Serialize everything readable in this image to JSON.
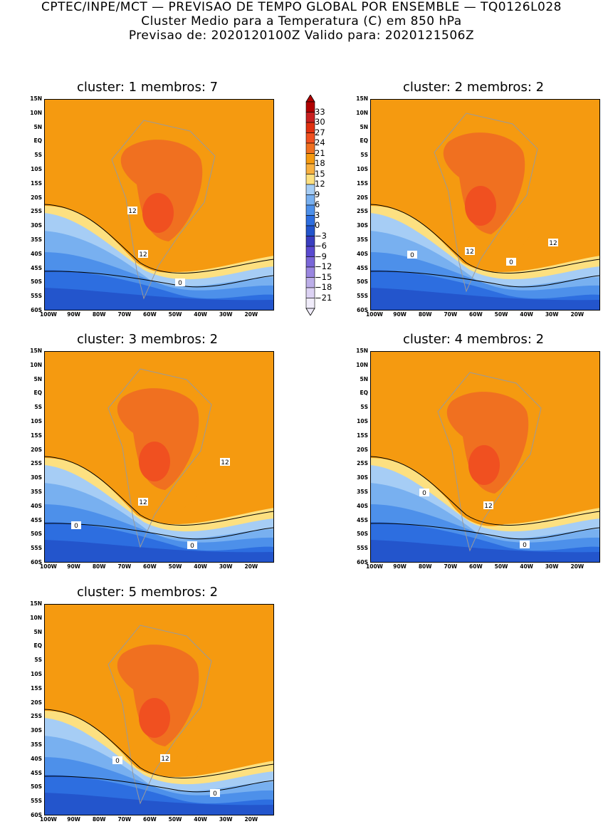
{
  "header": {
    "line1": "CPTEC/INPE/MCT — PREVISAO DE TEMPO GLOBAL POR ENSEMBLE — TQ0126L028",
    "line2": "Cluster Medio para a Temperatura (C) em 850 hPa",
    "line3": "Previsao de: 2020120100Z   Valido para: 2020121506Z"
  },
  "panels": [
    {
      "title": "cluster: 1   membros: 7",
      "contour_labels": [
        "12",
        "12",
        "0"
      ]
    },
    {
      "title": "cluster: 2   membros: 2",
      "contour_labels": [
        "12",
        "12",
        "0",
        "0"
      ]
    },
    {
      "title": "cluster: 3   membros: 2",
      "contour_labels": [
        "12",
        "12",
        "0",
        "0"
      ]
    },
    {
      "title": "cluster: 4   membros: 2",
      "contour_labels": [
        "12",
        "0",
        "0"
      ]
    },
    {
      "title": "cluster: 5   membros: 2",
      "contour_labels": [
        "12",
        "0",
        "0"
      ]
    }
  ],
  "y_ticks": [
    "15N",
    "10N",
    "5N",
    "EQ",
    "5S",
    "10S",
    "15S",
    "20S",
    "25S",
    "30S",
    "35S",
    "40S",
    "45S",
    "50S",
    "55S",
    "60S"
  ],
  "x_ticks": [
    "100W",
    "90W",
    "80W",
    "70W",
    "60W",
    "50W",
    "40W",
    "30W",
    "20W"
  ],
  "colorbar": {
    "labels": [
      "33",
      "30",
      "27",
      "24",
      "21",
      "18",
      "15",
      "12",
      "9",
      "6",
      "3",
      "0",
      "−3",
      "−6",
      "−9",
      "−12",
      "−15",
      "−18",
      "−21"
    ],
    "colors": [
      "#b00000",
      "#c82020",
      "#e03010",
      "#f05020",
      "#f07020",
      "#f59a10",
      "#f8b040",
      "#fde080",
      "#a6cdf5",
      "#78b0f0",
      "#4d90ea",
      "#2d6ee0",
      "#2355cc",
      "#3a3ec0",
      "#5a4ad0",
      "#7a66d8",
      "#9a86e0",
      "#bcaee8",
      "#dcd2f3",
      "#f0ecfa"
    ]
  }
}
